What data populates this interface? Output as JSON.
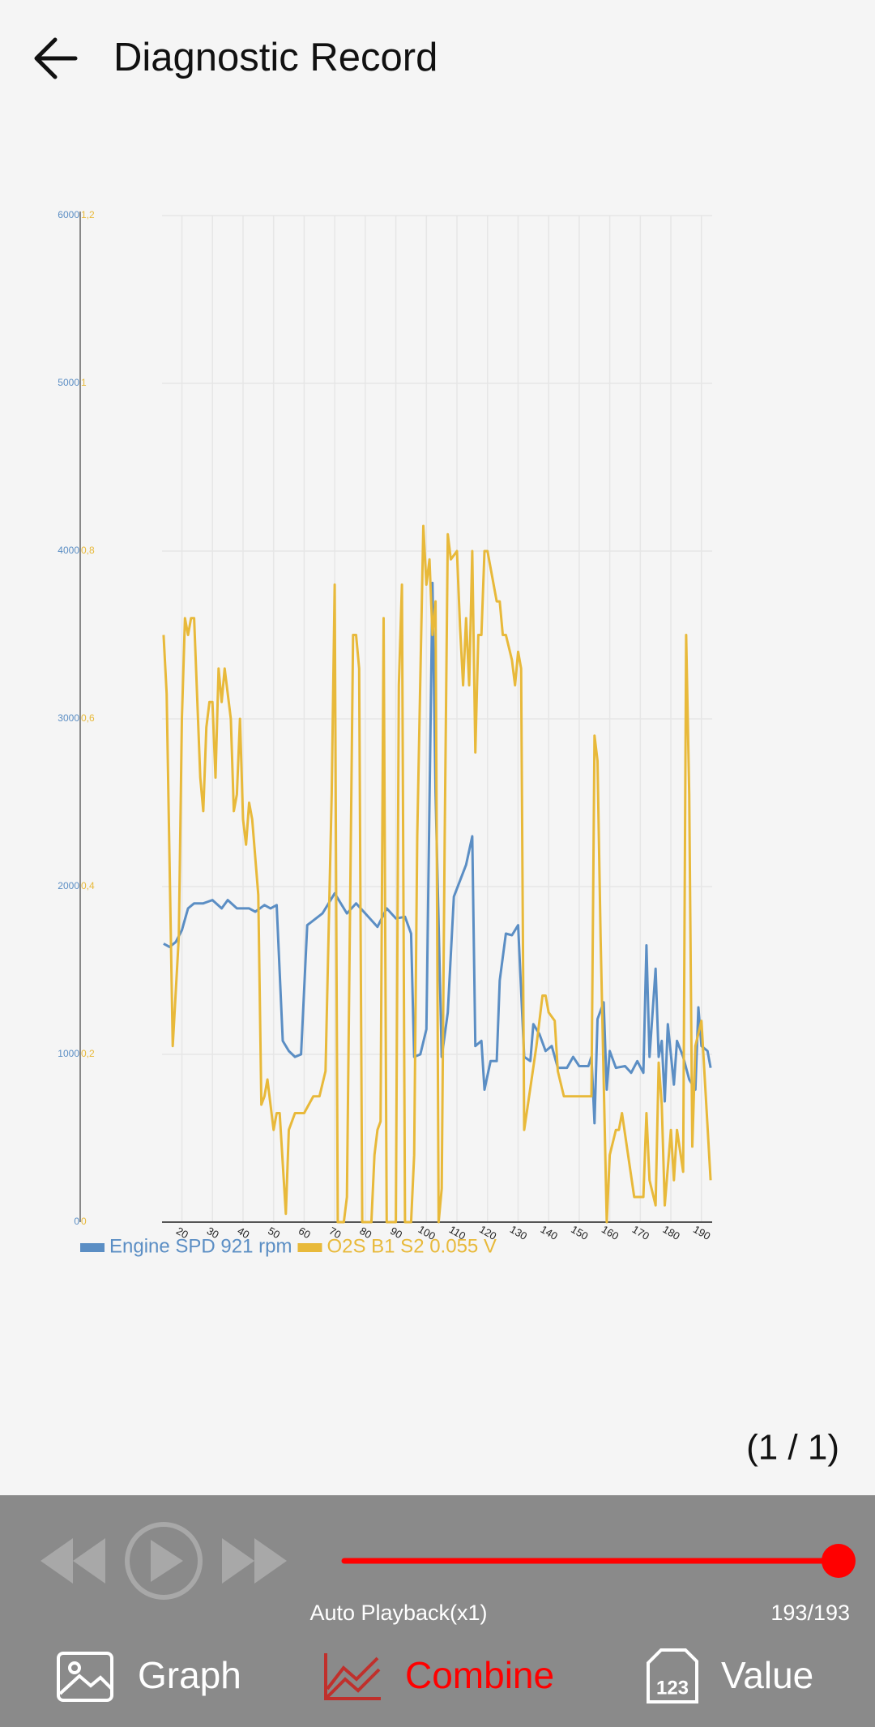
{
  "header": {
    "title": "Diagnostic Record"
  },
  "chart_data": {
    "type": "line",
    "xlim": [
      13.5,
      193.5
    ],
    "xticks": [
      20,
      30,
      40,
      50,
      60,
      70,
      80,
      90,
      100,
      110,
      120,
      130,
      140,
      150,
      160,
      170,
      180,
      190
    ],
    "ylim": [
      0,
      6000
    ],
    "yticks": [
      0,
      1000,
      2000,
      3000,
      4000,
      5000,
      6000
    ],
    "y2lim": [
      0,
      1.2
    ],
    "y2ticks": [
      0,
      {
        "value": 0.2,
        "label": "0,2"
      },
      {
        "value": 0.4,
        "label": "0,4"
      },
      {
        "value": 0.6,
        "label": "0,6"
      },
      {
        "value": 0.8,
        "label": "0,8"
      },
      1,
      {
        "value": 1.2,
        "label": "1,2"
      }
    ],
    "grid": true,
    "series": [
      {
        "name": "Engine SPD 921 rpm",
        "color": "#5b8ec4",
        "x": [
          14,
          16,
          18,
          20,
          22,
          24,
          27,
          30,
          33,
          35,
          38,
          42,
          44,
          47,
          49,
          51,
          53,
          55,
          57,
          59,
          61,
          66,
          70,
          74,
          77,
          80,
          84,
          87,
          90,
          93,
          95,
          96,
          98,
          100,
          102,
          103,
          105,
          107,
          109,
          113,
          115,
          116,
          118,
          119,
          121,
          123,
          124,
          126,
          128,
          130,
          132,
          134,
          135,
          137,
          139,
          141,
          143,
          146,
          148,
          150,
          153,
          154,
          155,
          156,
          158,
          159,
          160,
          162,
          165,
          167,
          169,
          171,
          172,
          173,
          175,
          176,
          177,
          178,
          179,
          181,
          182,
          184,
          186,
          188,
          189,
          190,
          192,
          193
        ],
        "values": [
          1660,
          1640,
          1670,
          1740,
          1870,
          1900,
          1900,
          1920,
          1870,
          1920,
          1870,
          1870,
          1850,
          1890,
          1870,
          1890,
          1080,
          1020,
          985,
          1000,
          1770,
          1840,
          1960,
          1840,
          1900,
          1840,
          1760,
          1870,
          1810,
          1820,
          1720,
          985,
          1000,
          1150,
          3810,
          2560,
          985,
          1250,
          1940,
          2130,
          2300,
          1050,
          1080,
          790,
          960,
          960,
          1440,
          1720,
          1710,
          1770,
          985,
          960,
          1180,
          1120,
          1020,
          1050,
          920,
          920,
          985,
          930,
          930,
          985,
          590,
          1210,
          1310,
          790,
          1020,
          920,
          930,
          890,
          960,
          890,
          1650,
          985,
          1510,
          985,
          1080,
          720,
          1180,
          820,
          1080,
          985,
          850,
          790,
          1280,
          1050,
          1020,
          920
        ]
      },
      {
        "name": "O2S B1 S2 0.055 V",
        "color": "#e8b93a",
        "axis": "y2",
        "x": [
          14,
          15,
          17,
          19,
          20,
          21,
          22,
          23,
          24,
          26,
          27,
          28,
          29,
          30,
          31,
          32,
          33,
          34,
          36,
          37,
          38,
          39,
          40,
          41,
          42,
          43,
          45,
          46,
          47,
          48,
          50,
          51,
          52,
          54,
          55,
          57,
          60,
          63,
          65,
          67,
          69,
          70,
          71,
          73,
          74,
          76,
          77,
          78,
          79,
          82,
          83,
          84,
          85,
          86,
          87,
          90,
          91,
          92,
          93,
          95,
          96,
          97,
          99,
          100,
          101,
          102,
          103,
          104,
          105,
          106,
          107,
          108,
          110,
          111,
          112,
          113,
          114,
          115,
          116,
          117,
          118,
          119,
          120,
          121,
          123,
          124,
          125,
          126,
          128,
          129,
          130,
          131,
          132,
          134,
          136,
          138,
          139,
          140,
          142,
          143,
          145,
          149,
          154,
          155,
          156,
          157,
          159,
          160,
          162,
          163,
          164,
          168,
          171,
          172,
          173,
          175,
          176,
          177,
          178,
          180,
          181,
          182,
          184,
          185,
          186,
          187,
          188,
          190,
          193
        ],
        "values": [
          0.7,
          0.63,
          0.21,
          0.34,
          0.6,
          0.72,
          0.7,
          0.72,
          0.72,
          0.53,
          0.49,
          0.59,
          0.62,
          0.62,
          0.53,
          0.66,
          0.62,
          0.66,
          0.6,
          0.49,
          0.51,
          0.6,
          0.48,
          0.45,
          0.5,
          0.48,
          0.39,
          0.14,
          0.15,
          0.17,
          0.11,
          0.13,
          0.13,
          0.01,
          0.11,
          0.13,
          0.13,
          0.15,
          0.15,
          0.18,
          0.51,
          0.76,
          0,
          0,
          0.03,
          0.7,
          0.7,
          0.66,
          0,
          0,
          0.08,
          0.11,
          0.12,
          0.72,
          0,
          0,
          0.64,
          0.76,
          0,
          0,
          0.08,
          0.46,
          0.83,
          0.76,
          0.79,
          0.7,
          0.74,
          0,
          0.04,
          0.46,
          0.82,
          0.79,
          0.8,
          0.71,
          0.64,
          0.72,
          0.64,
          0.8,
          0.56,
          0.7,
          0.7,
          0.8,
          0.8,
          0.78,
          0.74,
          0.74,
          0.7,
          0.7,
          0.67,
          0.64,
          0.68,
          0.66,
          0.11,
          0.16,
          0.21,
          0.27,
          0.27,
          0.25,
          0.24,
          0.18,
          0.15,
          0.15,
          0.15,
          0.58,
          0.55,
          0.34,
          0,
          0.08,
          0.11,
          0.11,
          0.13,
          0.03,
          0.03,
          0.13,
          0.05,
          0.02,
          0.19,
          0.14,
          0.02,
          0.11,
          0.05,
          0.11,
          0.06,
          0.7,
          0.51,
          0.09,
          0.21,
          0.24,
          0.05
        ]
      }
    ]
  },
  "page_indicator": "(1 / 1)",
  "playback": {
    "label": "Auto Playback(x1)",
    "position": "193/193"
  },
  "tabs": [
    {
      "label": "Graph"
    },
    {
      "label": "Combine"
    },
    {
      "label": "Value"
    }
  ]
}
